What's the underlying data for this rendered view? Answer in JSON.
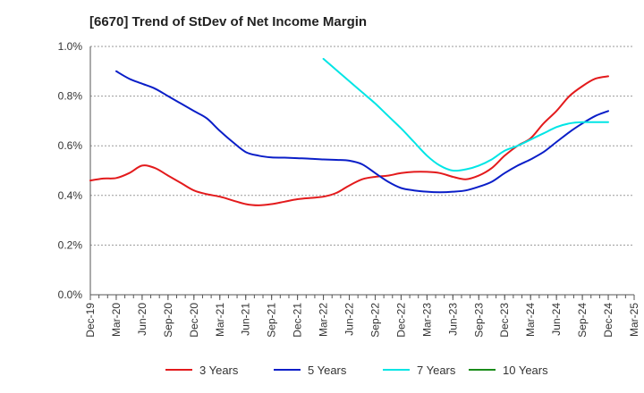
{
  "chart_data": {
    "type": "line",
    "title": "[6670]  Trend of StDev of Net Income Margin",
    "xlabel": "",
    "ylabel": "",
    "categories": [
      "Dec-19",
      "Mar-20",
      "Jun-20",
      "Sep-20",
      "Dec-20",
      "Mar-21",
      "Jun-21",
      "Sep-21",
      "Dec-21",
      "Mar-22",
      "Jun-22",
      "Sep-22",
      "Dec-22",
      "Mar-23",
      "Jun-23",
      "Sep-23",
      "Dec-23",
      "Mar-24",
      "Jun-24",
      "Sep-24",
      "Dec-24",
      "Mar-25"
    ],
    "yticks": [
      "0.0%",
      "0.2%",
      "0.4%",
      "0.6%",
      "0.8%",
      "1.0%"
    ],
    "ylim": [
      0,
      1.0
    ],
    "grid": "horizontal dashed",
    "legend_position": "bottom",
    "series": [
      {
        "name": "3 Years",
        "color": "#e31a1c",
        "values": [
          0.46,
          0.47,
          0.52,
          0.48,
          0.42,
          0.395,
          0.365,
          0.365,
          0.385,
          0.395,
          0.44,
          0.475,
          0.49,
          0.495,
          0.475,
          0.48,
          0.56,
          0.63,
          0.74,
          0.84,
          0.88,
          null
        ],
        "mid_values": [
          0.468,
          0.49,
          0.51,
          0.45,
          0.405,
          0.38,
          0.36,
          0.375,
          0.39,
          0.41,
          0.465,
          0.48,
          0.495,
          0.49,
          0.465,
          0.51,
          0.6,
          0.69,
          0.8,
          0.87,
          null,
          null
        ]
      },
      {
        "name": "5 Years",
        "color": "#0a1ec8",
        "values": [
          null,
          0.9,
          0.85,
          0.8,
          0.74,
          0.66,
          0.575,
          0.553,
          0.55,
          0.545,
          0.54,
          0.49,
          0.43,
          0.415,
          0.415,
          0.435,
          0.49,
          0.545,
          0.615,
          0.69,
          0.74,
          null
        ],
        "mid_values": [
          null,
          0.87,
          0.83,
          0.77,
          0.71,
          0.615,
          0.56,
          0.552,
          0.548,
          0.543,
          0.525,
          0.455,
          0.42,
          0.413,
          0.42,
          0.455,
          0.52,
          0.575,
          0.655,
          0.72,
          null,
          null
        ]
      },
      {
        "name": "7 Years",
        "color": "#00e5e5",
        "values": [
          null,
          null,
          null,
          null,
          null,
          null,
          null,
          null,
          null,
          0.95,
          0.86,
          0.77,
          0.67,
          0.56,
          0.5,
          0.52,
          0.58,
          0.625,
          0.675,
          0.695,
          0.695,
          null
        ],
        "mid_values": [
          null,
          null,
          null,
          null,
          null,
          null,
          null,
          null,
          null,
          0.905,
          0.815,
          0.72,
          0.615,
          0.52,
          0.505,
          0.545,
          0.6,
          0.65,
          0.69,
          0.695,
          null,
          null
        ]
      },
      {
        "name": "10 Years",
        "color": "#1a8c1a",
        "values": [
          null,
          null,
          null,
          null,
          null,
          null,
          null,
          null,
          null,
          null,
          null,
          null,
          null,
          null,
          null,
          null,
          null,
          null,
          null,
          null,
          null,
          null
        ],
        "mid_values": [
          null,
          null,
          null,
          null,
          null,
          null,
          null,
          null,
          null,
          null,
          null,
          null,
          null,
          null,
          null,
          null,
          null,
          null,
          null,
          null,
          null,
          null
        ]
      }
    ]
  }
}
